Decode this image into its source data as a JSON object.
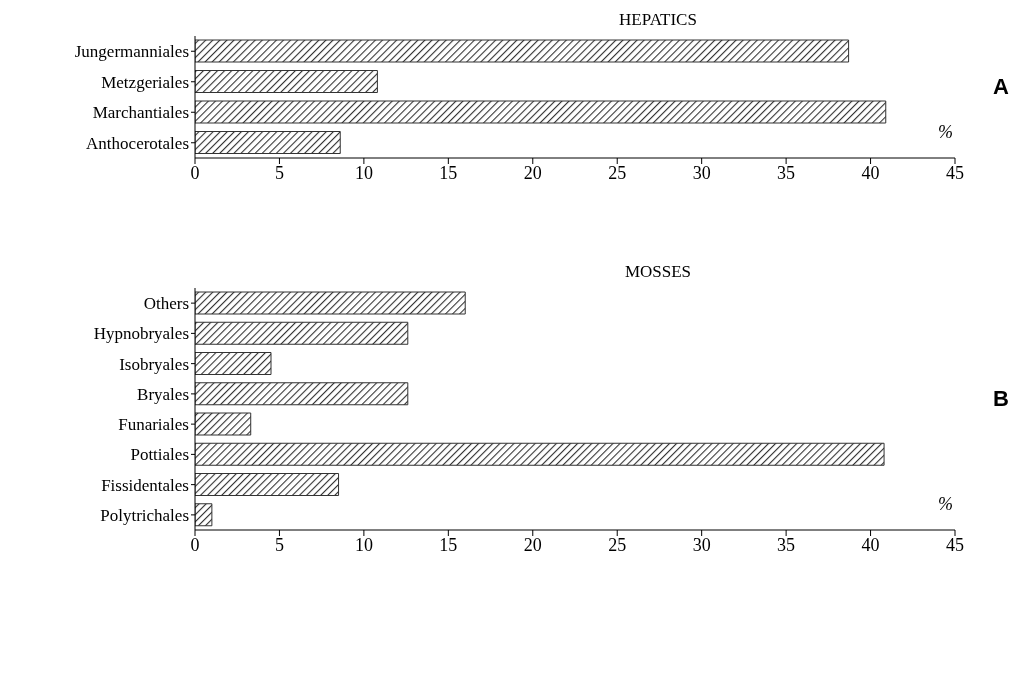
{
  "chart_data": [
    {
      "type": "bar",
      "orientation": "horizontal",
      "title": "HEPATICS",
      "categories": [
        "Jungermanniales",
        "Metzgeriales",
        "Marchantiales",
        "Anthocerotales"
      ],
      "values": [
        38.7,
        10.8,
        40.9,
        8.6
      ],
      "color": "#333333",
      "xlim": [
        0,
        45
      ],
      "xticks": [
        0,
        5,
        10,
        15,
        20,
        25,
        30,
        35,
        40,
        45
      ],
      "annotations": [
        "%",
        "A"
      ]
    },
    {
      "type": "bar",
      "orientation": "horizontal",
      "title": "MOSSES",
      "categories": [
        "Others",
        "Hypnobryales",
        "Isobryales",
        "Bryales",
        "Funariales",
        "Pottiales",
        "Fissidentales",
        "Polytrichales"
      ],
      "values": [
        16.0,
        12.6,
        4.5,
        12.6,
        3.3,
        40.8,
        8.5,
        1.0
      ],
      "color": "#333333",
      "xlim": [
        0,
        45
      ],
      "xticks": [
        0,
        5,
        10,
        15,
        20,
        25,
        30,
        35,
        40,
        45
      ],
      "annotations": [
        "%",
        "B"
      ]
    }
  ]
}
